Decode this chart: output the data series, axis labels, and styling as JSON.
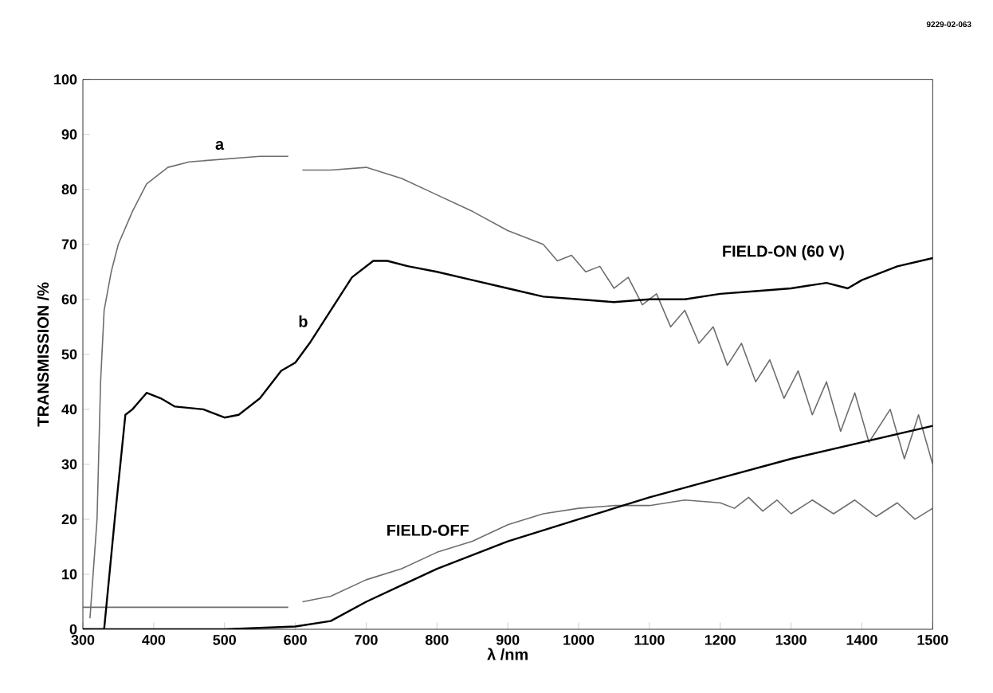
{
  "chart_data": {
    "type": "line",
    "xlabel": "λ /nm",
    "ylabel": "TRANSMISSION /%",
    "xlim": [
      300,
      1500
    ],
    "xticks": [
      300,
      400,
      500,
      600,
      700,
      800,
      900,
      1000,
      1100,
      1200,
      1300,
      1400,
      1500
    ],
    "ylim": [
      0,
      100
    ],
    "yticks": [
      0,
      10,
      20,
      30,
      40,
      50,
      60,
      70,
      80,
      90,
      100
    ],
    "grid": false,
    "marker": "none",
    "line_style": "solid",
    "series": [
      {
        "color": "#6e6e6e",
        "x": [
          310,
          320,
          325,
          330,
          340,
          350,
          370,
          390,
          420,
          450,
          500,
          550,
          590,
          600,
          610,
          650,
          700,
          750,
          800,
          850,
          900,
          950,
          970,
          990,
          1010,
          1030,
          1050,
          1070,
          1090,
          1110,
          1130,
          1150,
          1170,
          1190,
          1210,
          1230,
          1250,
          1270,
          1290,
          1310,
          1330,
          1350,
          1370,
          1390,
          1410,
          1440,
          1460,
          1480,
          1500
        ],
        "values": [
          2,
          20,
          45,
          58,
          65,
          70,
          76,
          81,
          84,
          85,
          85.5,
          86,
          86,
          null,
          83.5,
          83.5,
          84,
          82,
          79,
          76,
          72.5,
          70,
          67,
          68,
          65,
          66,
          62,
          64,
          59,
          61,
          55,
          58,
          52,
          55,
          48,
          52,
          45,
          49,
          42,
          47,
          39,
          45,
          36,
          43,
          34,
          40,
          31,
          39,
          30
        ]
      },
      {
        "color": "#6e6e6e",
        "x": [
          300,
          590,
          600,
          610,
          650,
          700,
          750,
          800,
          850,
          900,
          950,
          1000,
          1050,
          1100,
          1150,
          1200,
          1220,
          1240,
          1260,
          1280,
          1300,
          1330,
          1360,
          1390,
          1420,
          1450,
          1475,
          1500
        ],
        "values": [
          4,
          4,
          null,
          5,
          6,
          9,
          11,
          14,
          16,
          19,
          21,
          22,
          22.5,
          22.5,
          23.5,
          23,
          22,
          24,
          21.5,
          23.5,
          21,
          23.5,
          21,
          23.5,
          20.5,
          23,
          20,
          22
        ]
      },
      {
        "color": "#000000",
        "x": [
          300,
          330,
          345,
          360,
          370,
          390,
          410,
          430,
          470,
          500,
          520,
          550,
          580,
          600,
          620,
          650,
          680,
          710,
          730,
          760,
          800,
          850,
          900,
          950,
          1000,
          1050,
          1100,
          1150,
          1200,
          1250,
          1300,
          1350,
          1380,
          1400,
          1450,
          1500
        ],
        "values": [
          0,
          0,
          20,
          39,
          40,
          43,
          42,
          40.5,
          40,
          38.5,
          39,
          42,
          47,
          48.5,
          52,
          58,
          64,
          67,
          67,
          66,
          65,
          63.5,
          62,
          60.5,
          60,
          59.5,
          60,
          60,
          61,
          61.5,
          62,
          63,
          62,
          63.5,
          66,
          67.5
        ]
      },
      {
        "color": "#000000",
        "x": [
          300,
          400,
          500,
          600,
          650,
          700,
          800,
          900,
          1000,
          1100,
          1200,
          1300,
          1400,
          1500
        ],
        "values": [
          0,
          0,
          0,
          0.5,
          1.5,
          5,
          11,
          16,
          20,
          24,
          27.5,
          31,
          34,
          37
        ]
      }
    ],
    "annotations": [
      "a",
      "b",
      "FIELD-ON (60 V)",
      "FIELD-OFF",
      "9229-02-063"
    ]
  }
}
